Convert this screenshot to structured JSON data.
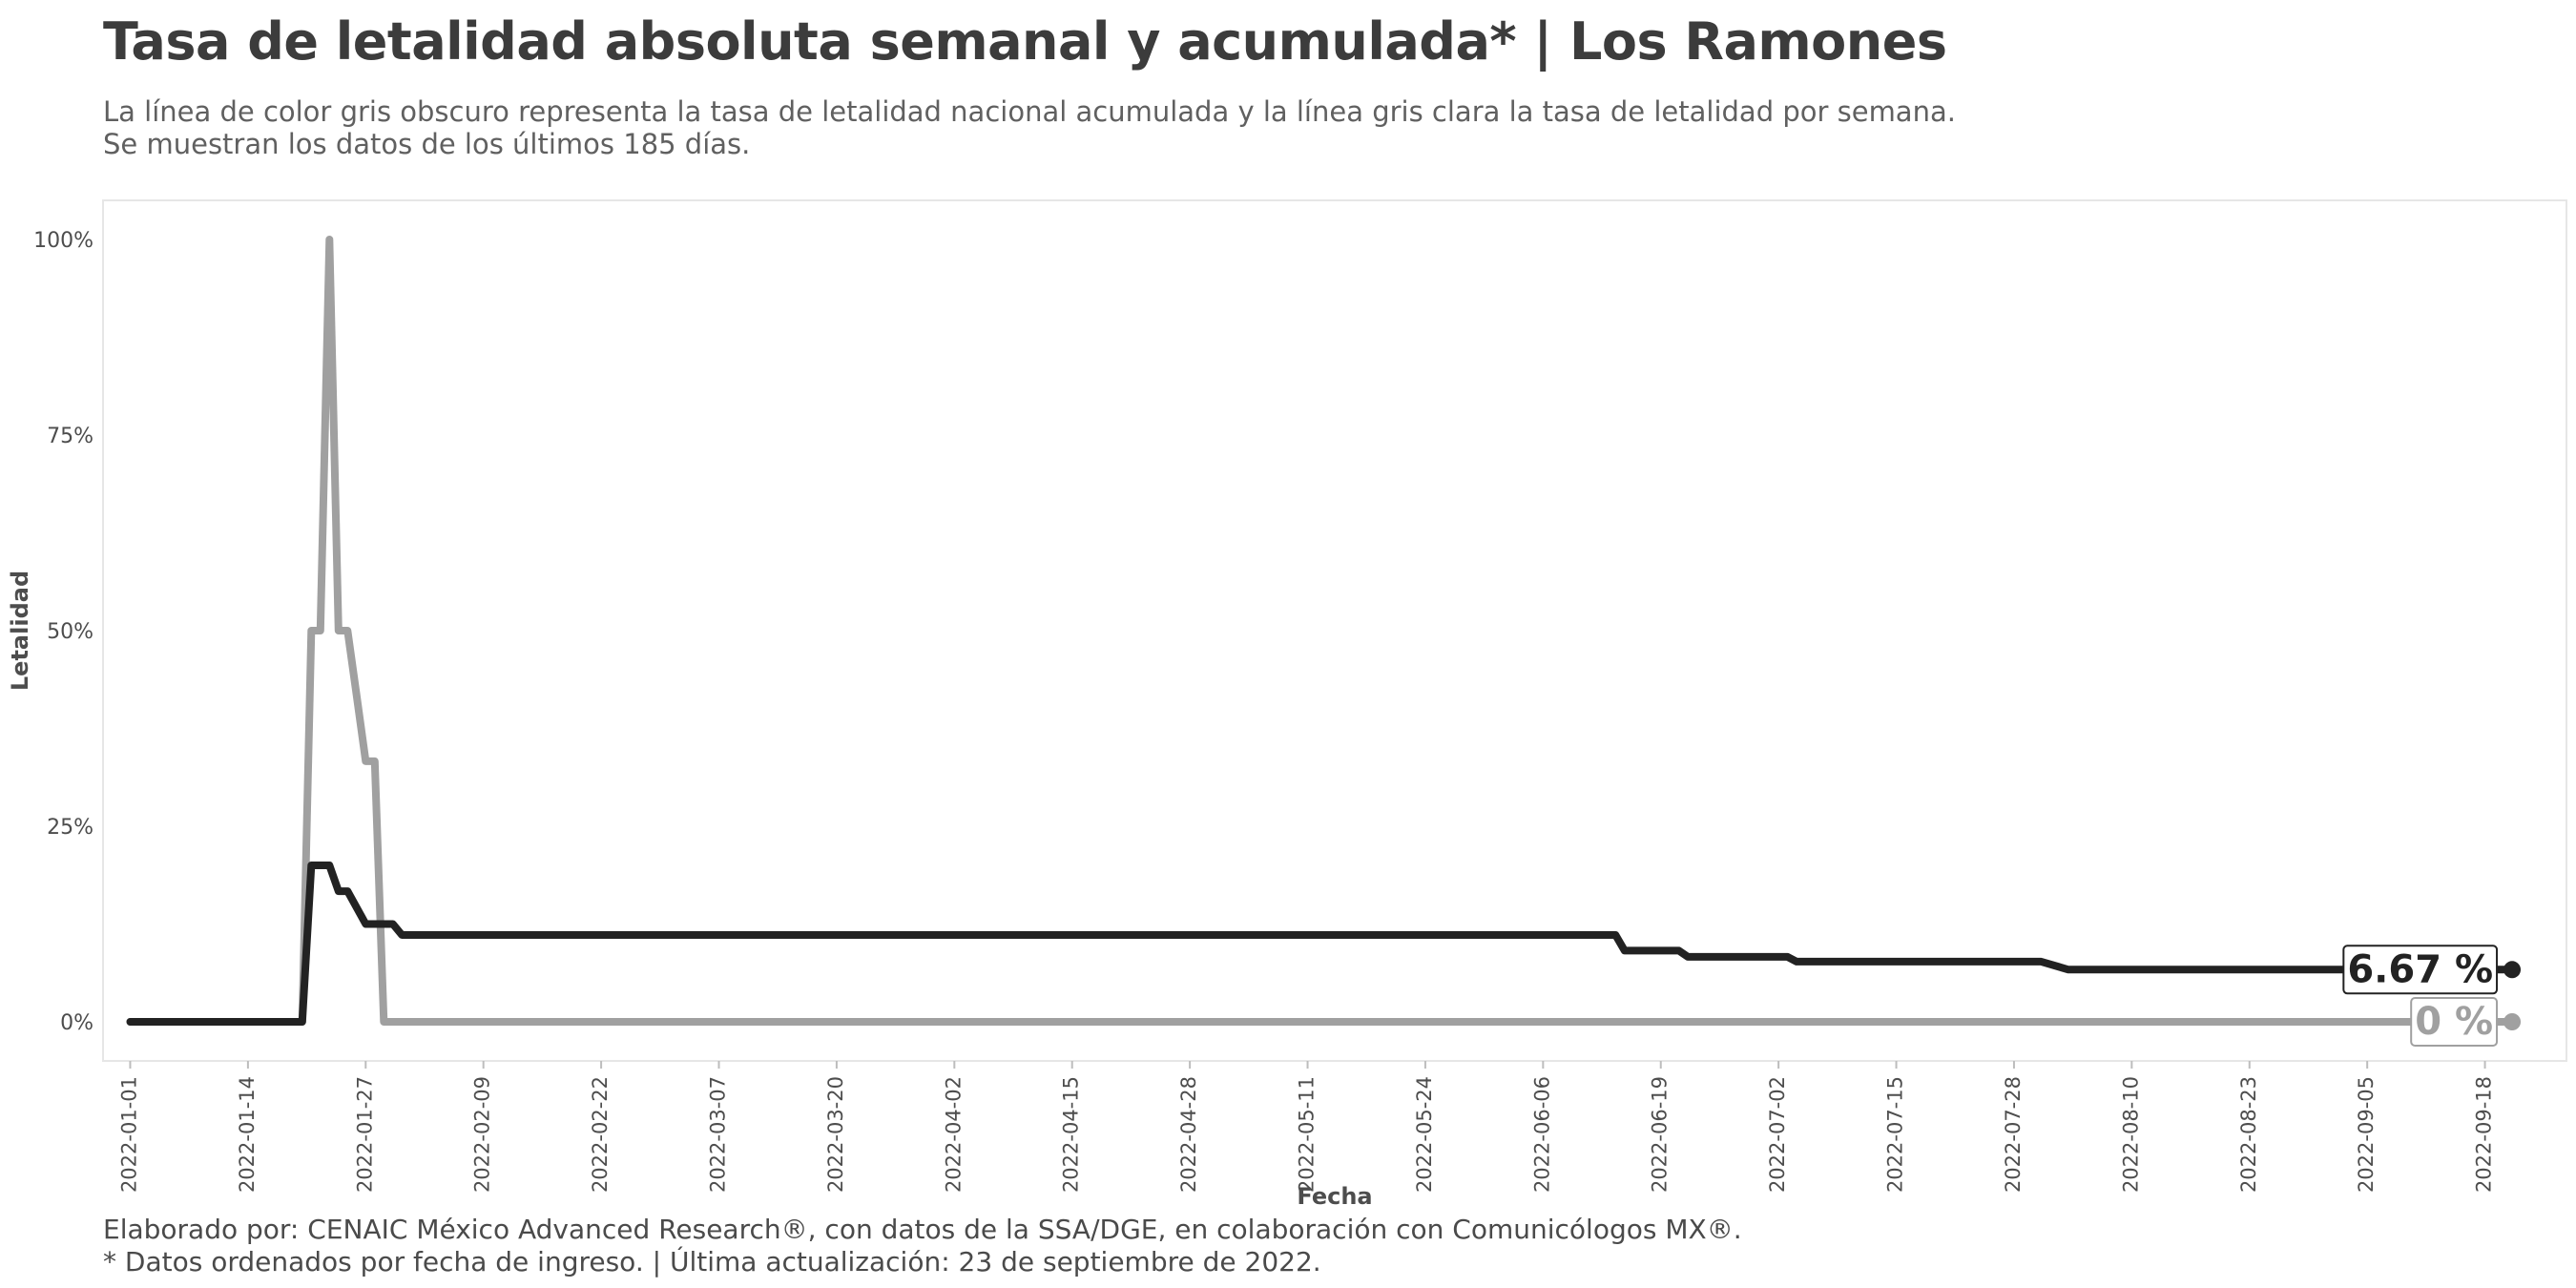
{
  "header": {
    "title": "Tasa de letalidad absoluta semanal y acumulada* | Los Ramones",
    "subtitle_line1": "La línea de color gris obscuro representa la tasa de letalidad nacional acumulada y la línea gris clara la tasa de letalidad por semana.",
    "subtitle_line2": "Se muestran los datos de los últimos 185 días."
  },
  "footer": {
    "caption_line1": "Elaborado por: CENAIC México Advanced Research®, con datos de la SSA/DGE, en colaboración con Comunicólogos MX®.",
    "caption_line2": "* Datos ordenados por fecha de ingreso. | Última actualización: 23 de septiembre de 2022."
  },
  "colors": {
    "accumulated": "#222222",
    "weekly": "#a0a0a0",
    "panel_border": "#e6e6e6",
    "axis_text": "#4d4d4d"
  },
  "chart_data": {
    "type": "line",
    "xlabel": "Fecha",
    "ylabel": "Letalidad",
    "x_tick_labels": [
      "2022-01-01",
      "2022-01-14",
      "2022-01-27",
      "2022-02-09",
      "2022-02-22",
      "2022-03-07",
      "2022-03-20",
      "2022-04-02",
      "2022-04-15",
      "2022-04-28",
      "2022-05-11",
      "2022-05-24",
      "2022-06-06",
      "2022-06-19",
      "2022-07-02",
      "2022-07-15",
      "2022-07-28",
      "2022-08-10",
      "2022-08-23",
      "2022-09-05",
      "2022-09-18"
    ],
    "y_tick_labels": [
      "0%",
      "25%",
      "50%",
      "75%",
      "100%"
    ],
    "y_ticks": [
      0,
      25,
      50,
      75,
      100
    ],
    "xlim": [
      "2021-12-29",
      "2022-09-27"
    ],
    "ylim": [
      -5,
      105
    ],
    "grid": false,
    "series": [
      {
        "key": "weekly",
        "end_label": "0 %",
        "points": [
          [
            "2022-01-01",
            0
          ],
          [
            "2022-01-20",
            0
          ],
          [
            "2022-01-21",
            50
          ],
          [
            "2022-01-22",
            50
          ],
          [
            "2022-01-23",
            100
          ],
          [
            "2022-01-24",
            50
          ],
          [
            "2022-01-25",
            50
          ],
          [
            "2022-01-26",
            41.7
          ],
          [
            "2022-01-27",
            33.3
          ],
          [
            "2022-01-28",
            33.3
          ],
          [
            "2022-01-29",
            0
          ],
          [
            "2022-09-21",
            0
          ]
        ]
      },
      {
        "key": "accumulated",
        "end_label": "6.67 %",
        "points": [
          [
            "2022-01-01",
            0
          ],
          [
            "2022-01-20",
            0
          ],
          [
            "2022-01-21",
            20
          ],
          [
            "2022-01-23",
            20
          ],
          [
            "2022-01-24",
            16.7
          ],
          [
            "2022-01-25",
            16.7
          ],
          [
            "2022-01-27",
            12.5
          ],
          [
            "2022-01-30",
            12.5
          ],
          [
            "2022-01-31",
            11.1
          ],
          [
            "2022-06-14",
            11.1
          ],
          [
            "2022-06-15",
            9.1
          ],
          [
            "2022-06-21",
            9.1
          ],
          [
            "2022-06-22",
            8.3
          ],
          [
            "2022-07-03",
            8.3
          ],
          [
            "2022-07-04",
            7.7
          ],
          [
            "2022-07-31",
            7.7
          ],
          [
            "2022-08-03",
            6.67
          ],
          [
            "2022-09-21",
            6.67
          ]
        ]
      }
    ]
  }
}
